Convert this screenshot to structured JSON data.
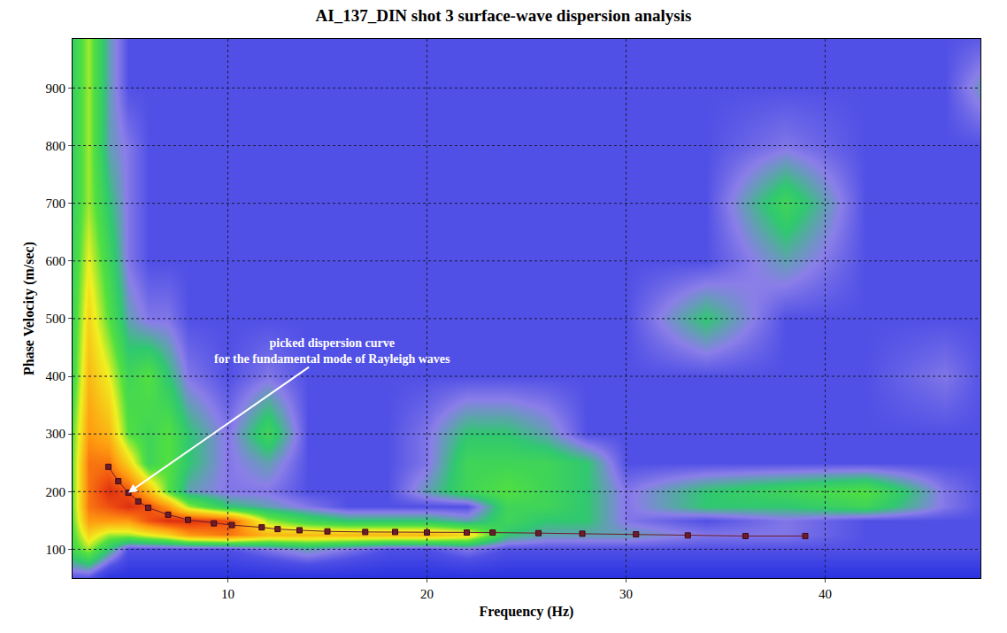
{
  "chart_data": {
    "type": "heatmap",
    "title": "AI_137_DIN shot 3 surface-wave dispersion analysis",
    "x_label": "Frequency (Hz)",
    "y_label": "Phase Velocity (m/sec)",
    "xlim": [
      2.2,
      47.8
    ],
    "ylim": [
      50,
      985
    ],
    "xticks": [
      10,
      20,
      30,
      40
    ],
    "yticks": [
      100,
      200,
      300,
      400,
      500,
      600,
      700,
      800,
      900
    ],
    "grid": true,
    "heatmap": {
      "x": [
        2,
        3,
        4,
        5,
        6,
        7,
        8,
        10,
        12,
        14,
        16,
        18,
        20,
        22,
        24,
        26,
        28,
        30,
        34,
        38,
        42,
        46,
        48
      ],
      "y": [
        50,
        100,
        125,
        150,
        175,
        200,
        250,
        300,
        400,
        500,
        600,
        700,
        800,
        900,
        1000
      ],
      "zlim": [
        0,
        1
      ],
      "z": [
        [
          0.3,
          0.3,
          0.2,
          0.2,
          0.2,
          0.2,
          0.2,
          0.2,
          0.2,
          0.2,
          0.2,
          0.2,
          0.2,
          0.2,
          0.2,
          0.2,
          0.2,
          0.2,
          0.2,
          0.2,
          0.2,
          0.2,
          0.2
        ],
        [
          0.5,
          0.6,
          0.45,
          0.3,
          0.3,
          0.3,
          0.3,
          0.3,
          0.35,
          0.4,
          0.35,
          0.3,
          0.3,
          0.35,
          0.3,
          0.3,
          0.3,
          0.3,
          0.3,
          0.3,
          0.3,
          0.3,
          0.3
        ],
        [
          0.5,
          0.7,
          0.6,
          0.6,
          0.65,
          0.7,
          0.8,
          0.85,
          0.75,
          0.75,
          0.75,
          0.75,
          0.75,
          0.7,
          0.45,
          0.4,
          0.4,
          0.4,
          0.35,
          0.35,
          0.3,
          0.3,
          0.3
        ],
        [
          0.5,
          0.8,
          0.8,
          0.8,
          0.9,
          0.95,
          0.95,
          0.9,
          0.6,
          0.5,
          0.45,
          0.45,
          0.45,
          0.4,
          0.5,
          0.45,
          0.45,
          0.35,
          0.3,
          0.35,
          0.3,
          0.3,
          0.3
        ],
        [
          0.5,
          0.85,
          0.9,
          0.95,
          0.9,
          0.8,
          0.6,
          0.45,
          0.4,
          0.35,
          0.3,
          0.3,
          0.3,
          0.3,
          0.5,
          0.5,
          0.45,
          0.35,
          0.45,
          0.45,
          0.5,
          0.35,
          0.3
        ],
        [
          0.5,
          0.85,
          0.95,
          0.9,
          0.75,
          0.55,
          0.4,
          0.35,
          0.35,
          0.3,
          0.3,
          0.3,
          0.4,
          0.5,
          0.55,
          0.5,
          0.45,
          0.35,
          0.45,
          0.5,
          0.55,
          0.35,
          0.3
        ],
        [
          0.5,
          0.85,
          0.85,
          0.7,
          0.5,
          0.55,
          0.45,
          0.35,
          0.4,
          0.3,
          0.3,
          0.3,
          0.35,
          0.5,
          0.5,
          0.5,
          0.45,
          0.3,
          0.3,
          0.3,
          0.3,
          0.3,
          0.3
        ],
        [
          0.5,
          0.8,
          0.75,
          0.55,
          0.5,
          0.55,
          0.45,
          0.35,
          0.5,
          0.3,
          0.3,
          0.3,
          0.35,
          0.45,
          0.45,
          0.4,
          0.3,
          0.3,
          0.3,
          0.3,
          0.3,
          0.3,
          0.3
        ],
        [
          0.45,
          0.75,
          0.65,
          0.5,
          0.55,
          0.45,
          0.35,
          0.3,
          0.35,
          0.3,
          0.3,
          0.3,
          0.3,
          0.3,
          0.3,
          0.3,
          0.3,
          0.3,
          0.3,
          0.3,
          0.3,
          0.35,
          0.3
        ],
        [
          0.45,
          0.7,
          0.55,
          0.4,
          0.35,
          0.35,
          0.3,
          0.3,
          0.3,
          0.3,
          0.3,
          0.3,
          0.3,
          0.3,
          0.3,
          0.3,
          0.3,
          0.3,
          0.45,
          0.3,
          0.3,
          0.3,
          0.3
        ],
        [
          0.45,
          0.65,
          0.5,
          0.35,
          0.3,
          0.3,
          0.3,
          0.3,
          0.3,
          0.3,
          0.3,
          0.3,
          0.3,
          0.3,
          0.3,
          0.3,
          0.3,
          0.3,
          0.3,
          0.4,
          0.3,
          0.3,
          0.3
        ],
        [
          0.45,
          0.6,
          0.45,
          0.35,
          0.3,
          0.3,
          0.3,
          0.3,
          0.3,
          0.3,
          0.3,
          0.3,
          0.3,
          0.3,
          0.3,
          0.3,
          0.3,
          0.3,
          0.3,
          0.5,
          0.3,
          0.3,
          0.3
        ],
        [
          0.45,
          0.6,
          0.4,
          0.35,
          0.3,
          0.3,
          0.3,
          0.3,
          0.3,
          0.3,
          0.3,
          0.3,
          0.3,
          0.3,
          0.3,
          0.3,
          0.3,
          0.3,
          0.3,
          0.35,
          0.3,
          0.3,
          0.3
        ],
        [
          0.45,
          0.6,
          0.4,
          0.3,
          0.3,
          0.3,
          0.3,
          0.3,
          0.3,
          0.3,
          0.3,
          0.3,
          0.3,
          0.3,
          0.3,
          0.3,
          0.3,
          0.3,
          0.3,
          0.3,
          0.3,
          0.3,
          0.4
        ],
        [
          0.45,
          0.6,
          0.4,
          0.3,
          0.3,
          0.3,
          0.3,
          0.3,
          0.3,
          0.3,
          0.3,
          0.3,
          0.3,
          0.3,
          0.3,
          0.3,
          0.3,
          0.3,
          0.3,
          0.3,
          0.3,
          0.3,
          0.3
        ]
      ]
    },
    "series": [
      {
        "type": "line",
        "color": "#6e1c2c",
        "marker": "square",
        "line_style": "solid",
        "x": [
          4.0,
          4.5,
          5.0,
          5.5,
          6.0,
          7.0,
          8.0,
          9.3,
          10.2,
          11.7,
          12.5,
          13.6,
          15.0,
          16.9,
          18.4,
          20.0,
          22.0,
          23.3,
          25.6,
          27.8,
          30.5,
          33.1,
          36.0,
          39.0
        ],
        "values": [
          243,
          218,
          198,
          183,
          172,
          160,
          151,
          145,
          142,
          138,
          135,
          133,
          131,
          130,
          130,
          129,
          129,
          129,
          128,
          127,
          126,
          124,
          123,
          123
        ]
      }
    ],
    "annotations": [
      {
        "text": [
          "picked dispersion curve",
          "for the fundamental mode of Rayleigh waves"
        ],
        "x": 5.0,
        "y": 198
      }
    ]
  }
}
